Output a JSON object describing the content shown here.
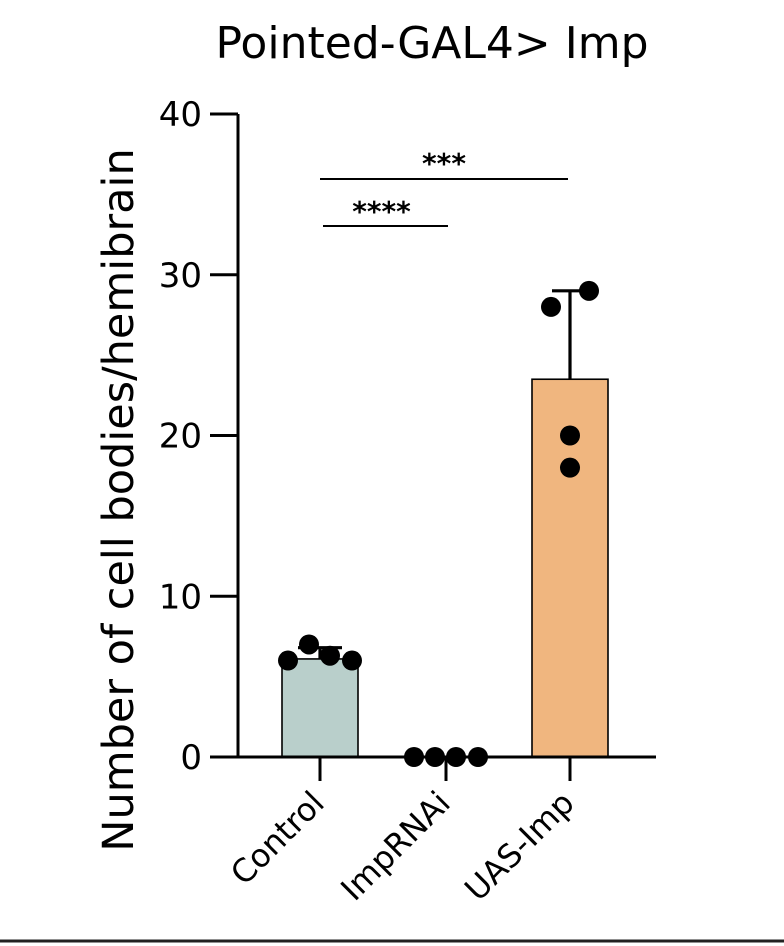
{
  "chart_data": {
    "type": "bar",
    "title": "Pointed-GAL4> Imp",
    "xlabel": "",
    "ylabel": "Number of cell bodies/hemibrain",
    "ylim": [
      0,
      40
    ],
    "yticks": [
      0,
      10,
      20,
      30,
      40
    ],
    "categories": [
      "Control",
      "ImpRNAi",
      "UAS-Imp"
    ],
    "values": [
      6.1,
      0,
      23.5
    ],
    "error_upper": [
      6.8,
      0,
      29.0
    ],
    "points": [
      [
        6.0,
        7.0,
        6.3,
        6.0
      ],
      [
        0,
        0,
        0,
        0
      ],
      [
        28.0,
        29.0,
        20.0,
        18.0
      ]
    ],
    "bar_colors": [
      "#b9cfcb",
      "#ffffff",
      "#f0b67f"
    ],
    "significance": [
      {
        "from": "Control",
        "to": "UAS-Imp",
        "label": "***"
      },
      {
        "from": "Control",
        "to": "ImpRNAi",
        "label": "****"
      }
    ]
  }
}
